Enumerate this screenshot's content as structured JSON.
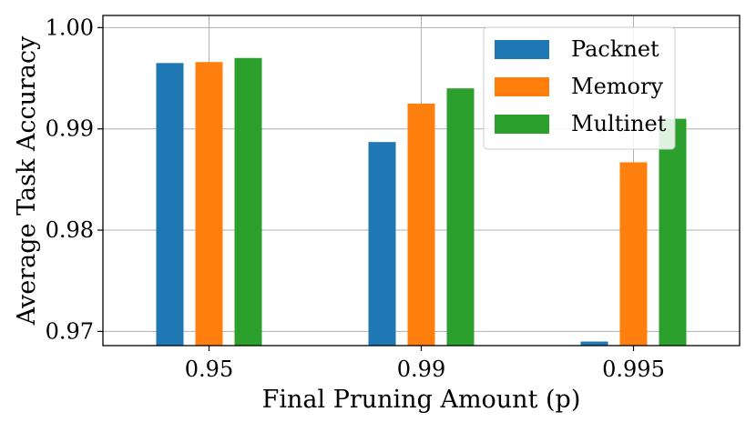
{
  "chart_data": {
    "type": "bar",
    "title": "",
    "xlabel": "Final Pruning Amount (p)",
    "ylabel": "Average Task Accuracy",
    "categories": [
      "0.95",
      "0.99",
      "0.995"
    ],
    "ylim": [
      0.9686,
      1.0012
    ],
    "yticks": [
      "0.97",
      "0.98",
      "0.99",
      "1.00"
    ],
    "grid": true,
    "legend_position": "top-right",
    "series": [
      {
        "name": "Packnet",
        "color": "#1f77b4",
        "values": [
          0.9965,
          0.9887,
          0.969
        ]
      },
      {
        "name": "Memory",
        "color": "#ff7f0e",
        "values": [
          0.9966,
          0.9925,
          0.9867
        ]
      },
      {
        "name": "Multinet",
        "color": "#2ca02c",
        "values": [
          0.997,
          0.994,
          0.991
        ]
      }
    ]
  }
}
